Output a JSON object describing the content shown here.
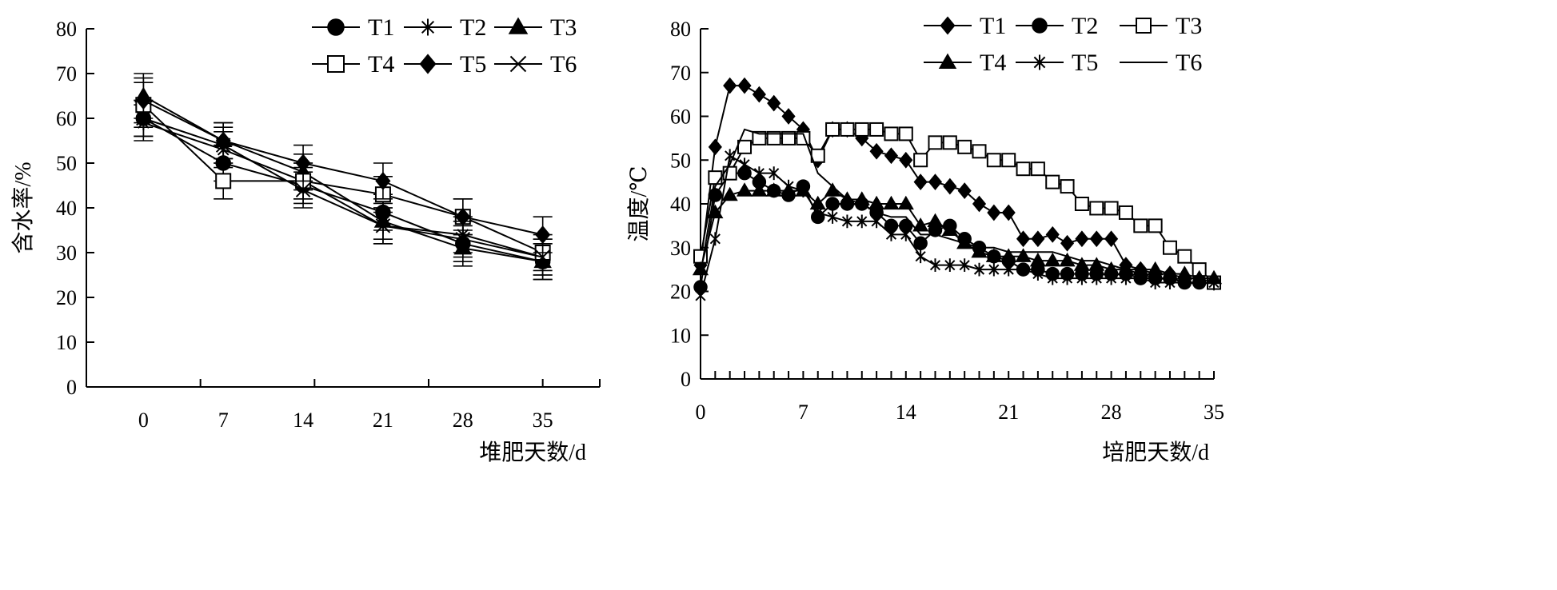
{
  "chart_data": [
    {
      "type": "line",
      "title": "",
      "xlabel": "堆肥天数/d",
      "ylabel": "含水率/%",
      "xlim": [
        -5,
        40
      ],
      "ylim": [
        0,
        80
      ],
      "xticks": [
        0,
        7,
        14,
        21,
        28,
        35
      ],
      "yticks": [
        0,
        10,
        20,
        30,
        40,
        50,
        60,
        70,
        80
      ],
      "grid": false,
      "legend": "top-right",
      "error_bars": true,
      "x": [
        0,
        7,
        14,
        21,
        28,
        35
      ],
      "series": [
        {
          "name": "T1",
          "marker": "circle",
          "values": [
            60,
            50,
            45,
            39,
            32,
            28
          ],
          "errors": [
            4,
            4,
            4,
            4,
            4,
            4
          ]
        },
        {
          "name": "T2",
          "marker": "star",
          "values": [
            59,
            53,
            46,
            36,
            34,
            29
          ],
          "errors": [
            4,
            4,
            4,
            4,
            4,
            4
          ]
        },
        {
          "name": "T3",
          "marker": "triangle",
          "values": [
            65,
            55,
            48,
            37,
            31,
            28
          ],
          "errors": [
            5,
            4,
            4,
            4,
            4,
            4
          ]
        },
        {
          "name": "T4",
          "marker": "square-open",
          "values": [
            63,
            46,
            46,
            43,
            38,
            30
          ],
          "errors": [
            5,
            4,
            4,
            4,
            4,
            4
          ]
        },
        {
          "name": "T5",
          "marker": "diamond",
          "values": [
            64,
            55,
            50,
            46,
            38,
            34
          ],
          "errors": [
            5,
            4,
            4,
            4,
            4,
            4
          ]
        },
        {
          "name": "T6",
          "marker": "x",
          "values": [
            60,
            54,
            44,
            36,
            33,
            29
          ],
          "errors": [
            4,
            4,
            4,
            4,
            4,
            4
          ]
        }
      ]
    },
    {
      "type": "line",
      "title": "",
      "xlabel": "培肥天数/d",
      "ylabel": "温度/℃",
      "xlim": [
        0,
        35
      ],
      "ylim": [
        0,
        80
      ],
      "xticks": [
        0,
        7,
        14,
        21,
        28,
        35
      ],
      "yticks": [
        0,
        10,
        20,
        30,
        40,
        50,
        60,
        70,
        80
      ],
      "grid": false,
      "legend": "top-right",
      "x": [
        0,
        1,
        2,
        3,
        4,
        5,
        6,
        7,
        8,
        9,
        10,
        11,
        12,
        13,
        14,
        15,
        16,
        17,
        18,
        19,
        20,
        21,
        22,
        23,
        24,
        25,
        26,
        27,
        28,
        29,
        30,
        31,
        32,
        33,
        34,
        35
      ],
      "series": [
        {
          "name": "T1",
          "marker": "diamond",
          "values": [
            26,
            53,
            67,
            67,
            65,
            63,
            60,
            57,
            50,
            57,
            57,
            55,
            52,
            51,
            50,
            45,
            45,
            44,
            43,
            40,
            38,
            38,
            32,
            32,
            33,
            31,
            32,
            32,
            32,
            26,
            25,
            24,
            24,
            23,
            23,
            22
          ]
        },
        {
          "name": "T2",
          "marker": "circle",
          "values": [
            21,
            42,
            47,
            47,
            45,
            43,
            42,
            44,
            37,
            40,
            40,
            40,
            38,
            35,
            35,
            31,
            34,
            35,
            32,
            30,
            28,
            27,
            25,
            25,
            24,
            24,
            24,
            24,
            24,
            24,
            23,
            23,
            23,
            22,
            22,
            22
          ]
        },
        {
          "name": "T3",
          "marker": "square-open",
          "values": [
            28,
            46,
            47,
            53,
            55,
            55,
            55,
            55,
            51,
            57,
            57,
            57,
            57,
            56,
            56,
            50,
            54,
            54,
            53,
            52,
            50,
            50,
            48,
            48,
            45,
            44,
            40,
            39,
            39,
            38,
            35,
            35,
            30,
            28,
            25,
            22
          ]
        },
        {
          "name": "T4",
          "marker": "triangle",
          "values": [
            25,
            38,
            42,
            43,
            43,
            43,
            43,
            43,
            40,
            43,
            41,
            41,
            40,
            40,
            40,
            35,
            36,
            34,
            31,
            29,
            28,
            28,
            28,
            27,
            27,
            27,
            26,
            26,
            25,
            25,
            25,
            25,
            24,
            24,
            23,
            23
          ]
        },
        {
          "name": "T5",
          "marker": "star",
          "values": [
            19,
            32,
            51,
            49,
            47,
            47,
            44,
            43,
            38,
            37,
            36,
            36,
            36,
            33,
            33,
            28,
            26,
            26,
            26,
            25,
            25,
            25,
            25,
            24,
            23,
            23,
            23,
            23,
            23,
            23,
            23,
            22,
            22,
            22,
            22,
            22
          ]
        },
        {
          "name": "T6",
          "marker": "none",
          "values": [
            24,
            44,
            49,
            57,
            56,
            56,
            56,
            56,
            47,
            44,
            41,
            40,
            38,
            37,
            37,
            33,
            33,
            32,
            31,
            30,
            30,
            29,
            29,
            29,
            29,
            28,
            27,
            27,
            26,
            25,
            24,
            23,
            23,
            22,
            22,
            22
          ]
        }
      ]
    }
  ]
}
